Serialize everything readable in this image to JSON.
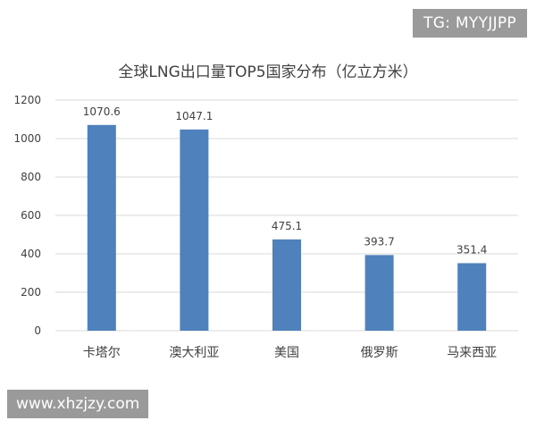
{
  "watermarks": {
    "top": "TG: MYYJJPP",
    "bottom": "www.xhzjzy.com"
  },
  "chart_data": {
    "type": "bar",
    "title": "全球LNG出口量TOP5国家分布（亿立方米）",
    "categories": [
      "卡塔尔",
      "澳大利亚",
      "美国",
      "俄罗斯",
      "马来西亚"
    ],
    "values": [
      1070.6,
      1047.1,
      475.1,
      393.7,
      351.4
    ],
    "data_labels": [
      "1070.6",
      "1047.1",
      "475.1",
      "393.7",
      "351.4"
    ],
    "ylim": [
      0,
      1200
    ],
    "yticks": [
      0,
      200,
      400,
      600,
      800,
      1000,
      1200
    ],
    "grid": true,
    "bar_color": "#4f81bd",
    "grid_color": "#d9d9d9"
  }
}
